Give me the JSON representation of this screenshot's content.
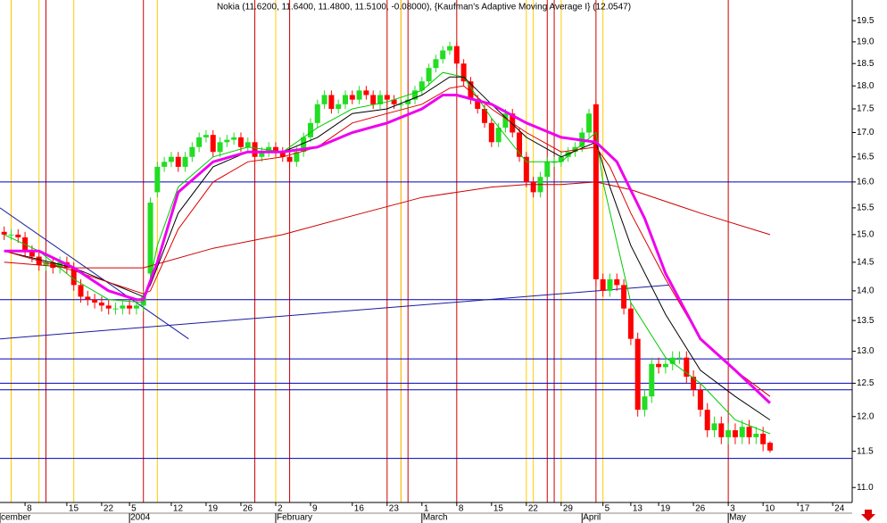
{
  "chart_data": {
    "type": "candlestick",
    "title": "Nokia (11.6200, 11.6400, 11.4800, 11.5100, -0.08000), {Kaufman's Adaptive Moving Average I} (12.0547)",
    "log_y": true,
    "xlim": [
      -0.6,
      121.8
    ],
    "ylim": [
      10.8,
      20.0
    ],
    "yticks": [
      {
        "value": 11,
        "label": "11.0"
      },
      11.5,
      {
        "value": 12,
        "label": "12.0"
      },
      12.5,
      {
        "value": 13,
        "label": "13.0"
      },
      13.5,
      {
        "value": 14,
        "label": "14.0"
      },
      14.5,
      {
        "value": 15,
        "label": "15.0"
      },
      15.5,
      {
        "value": 16,
        "label": "16.0"
      },
      16.5,
      {
        "value": 17,
        "label": "17.0"
      },
      17.5,
      {
        "value": 18,
        "label": "18.0"
      },
      18.5,
      {
        "value": 19,
        "label": "19.0"
      },
      19.5
    ],
    "xticks": [
      {
        "value": 3,
        "label": "8"
      },
      {
        "value": 9,
        "label": "15"
      },
      {
        "value": 14,
        "label": "22"
      },
      {
        "value": 18,
        "label": "5"
      },
      {
        "value": 24,
        "label": "12"
      },
      {
        "value": 29,
        "label": "19"
      },
      {
        "value": 34,
        "label": "26"
      },
      {
        "value": 39,
        "label": "2"
      },
      {
        "value": 44,
        "label": "9"
      },
      {
        "value": 50,
        "label": "16"
      },
      {
        "value": 55,
        "label": "23"
      },
      {
        "value": 60,
        "label": "1"
      },
      {
        "value": 65,
        "label": "8"
      },
      {
        "value": 70,
        "label": "15"
      },
      {
        "value": 75,
        "label": "22"
      },
      {
        "value": 80,
        "label": "29"
      },
      {
        "value": 86,
        "label": "5"
      },
      {
        "value": 90,
        "label": "13"
      },
      {
        "value": 94,
        "label": "19"
      },
      {
        "value": 99,
        "label": "26"
      },
      {
        "value": 104,
        "label": "3"
      },
      {
        "value": 109,
        "label": "10"
      },
      {
        "value": 114,
        "label": "17"
      },
      {
        "value": 119,
        "label": "24"
      }
    ],
    "month_ticks": [
      {
        "value": -0.6,
        "label": "cember"
      },
      {
        "value": 18,
        "label": "2004"
      },
      {
        "value": 39,
        "label": "February"
      },
      {
        "value": 60,
        "label": "March"
      },
      {
        "value": 83,
        "label": "April"
      },
      {
        "value": 104,
        "label": "May"
      }
    ],
    "up_color": "#22dd22",
    "down_color": "#ff0000",
    "open": [
      15.05,
      15.0,
      15.0,
      14.95,
      14.7,
      14.6,
      14.45,
      14.5,
      14.4,
      14.5,
      14.4,
      14.1,
      13.9,
      13.85,
      13.8,
      13.75,
      13.7,
      13.7,
      13.75,
      13.7,
      13.75,
      14.3,
      15.8,
      16.3,
      16.4,
      16.5,
      16.3,
      16.5,
      16.7,
      16.9,
      16.95,
      16.6,
      16.8,
      16.85,
      16.9,
      16.7,
      16.8,
      16.5,
      16.6,
      16.7,
      16.6,
      16.5,
      16.4,
      16.6,
      16.9,
      17.2,
      17.6,
      17.8,
      17.5,
      17.6,
      17.8,
      17.7,
      17.9,
      17.8,
      17.6,
      17.8,
      17.7,
      17.6,
      17.6,
      17.7,
      17.9,
      18.1,
      18.4,
      18.6,
      18.8,
      18.9,
      18.5,
      18.1,
      17.7,
      17.5,
      17.2,
      16.8,
      17.1,
      17.4,
      17.0,
      16.5,
      16.0,
      15.8,
      16.1,
      16.4,
      16.4,
      16.5,
      16.6,
      16.7,
      17.0,
      17.6,
      14.2,
      14.0,
      14.2,
      14.1,
      13.7,
      13.2,
      12.1,
      12.3,
      12.8,
      12.75,
      12.8,
      12.9,
      12.9,
      12.6,
      12.4,
      12.1,
      11.8,
      11.9,
      11.7,
      11.8,
      11.7,
      11.85,
      11.7,
      11.75,
      11.62
    ],
    "high": [
      15.15,
      15.1,
      15.1,
      15.05,
      14.8,
      14.7,
      14.6,
      14.6,
      14.6,
      14.6,
      14.5,
      14.2,
      14.0,
      13.95,
      13.9,
      13.85,
      13.8,
      13.85,
      13.85,
      13.85,
      14.0,
      15.7,
      16.4,
      16.5,
      16.6,
      16.6,
      16.6,
      16.8,
      17.0,
      17.05,
      17.05,
      16.9,
      16.95,
      17.0,
      17.0,
      16.9,
      16.9,
      16.7,
      16.8,
      16.8,
      16.7,
      16.6,
      16.7,
      17.0,
      17.3,
      17.7,
      17.9,
      17.9,
      17.7,
      17.9,
      17.9,
      18.0,
      18.0,
      17.9,
      17.9,
      17.9,
      17.8,
      17.7,
      17.8,
      18.0,
      18.2,
      18.5,
      18.7,
      18.9,
      19.0,
      19.0,
      18.6,
      18.2,
      17.8,
      17.6,
      17.3,
      17.2,
      17.5,
      17.5,
      17.1,
      16.6,
      16.1,
      16.2,
      16.5,
      16.5,
      16.6,
      16.7,
      16.8,
      17.1,
      17.5,
      17.7,
      14.3,
      14.3,
      14.3,
      14.2,
      13.8,
      13.3,
      12.4,
      12.9,
      12.9,
      12.9,
      13.0,
      13.0,
      13.0,
      12.7,
      12.5,
      12.2,
      12.0,
      12.0,
      11.9,
      11.9,
      11.95,
      11.95,
      11.85,
      11.85,
      11.64
    ],
    "low": [
      14.9,
      14.9,
      14.85,
      14.6,
      14.5,
      14.35,
      14.35,
      14.3,
      14.3,
      14.3,
      14.0,
      13.8,
      13.75,
      13.7,
      13.65,
      13.6,
      13.6,
      13.6,
      13.6,
      13.6,
      13.65,
      14.2,
      15.7,
      16.2,
      16.3,
      16.2,
      16.2,
      16.4,
      16.6,
      16.8,
      16.5,
      16.5,
      16.7,
      16.75,
      16.6,
      16.6,
      16.4,
      16.4,
      16.5,
      16.5,
      16.4,
      16.3,
      16.3,
      16.5,
      16.8,
      17.1,
      17.5,
      17.4,
      17.4,
      17.5,
      17.6,
      17.6,
      17.7,
      17.5,
      17.5,
      17.6,
      17.5,
      17.5,
      17.5,
      17.6,
      17.8,
      18.0,
      18.3,
      18.5,
      18.7,
      18.4,
      18.0,
      17.6,
      17.4,
      17.1,
      16.7,
      16.7,
      17.0,
      16.9,
      16.4,
      15.9,
      15.7,
      15.7,
      16.0,
      16.3,
      16.3,
      16.4,
      16.5,
      16.6,
      16.9,
      14.1,
      13.9,
      13.9,
      14.0,
      13.6,
      13.1,
      12.0,
      12.0,
      12.2,
      12.65,
      12.65,
      12.7,
      12.8,
      12.5,
      12.3,
      12.0,
      11.7,
      11.7,
      11.6,
      11.6,
      11.6,
      11.6,
      11.6,
      11.6,
      11.5,
      11.48
    ],
    "close": [
      15.0,
      15.0,
      14.95,
      14.7,
      14.6,
      14.45,
      14.5,
      14.4,
      14.5,
      14.4,
      14.1,
      13.9,
      13.85,
      13.8,
      13.75,
      13.7,
      13.7,
      13.75,
      13.7,
      13.75,
      13.9,
      15.6,
      16.3,
      16.4,
      16.5,
      16.3,
      16.5,
      16.7,
      16.9,
      16.95,
      16.6,
      16.8,
      16.85,
      16.9,
      16.7,
      16.8,
      16.5,
      16.6,
      16.7,
      16.6,
      16.5,
      16.4,
      16.6,
      16.9,
      17.2,
      17.6,
      17.8,
      17.5,
      17.6,
      17.8,
      17.7,
      17.9,
      17.8,
      17.6,
      17.8,
      17.7,
      17.6,
      17.6,
      17.7,
      17.9,
      18.1,
      18.4,
      18.6,
      18.8,
      18.9,
      18.5,
      18.1,
      17.7,
      17.5,
      17.2,
      16.8,
      17.1,
      17.4,
      17.0,
      16.5,
      16.0,
      15.8,
      16.1,
      16.4,
      16.4,
      16.5,
      16.6,
      16.7,
      17.0,
      17.4,
      14.2,
      14.0,
      14.2,
      14.1,
      13.7,
      13.2,
      12.1,
      12.3,
      12.8,
      12.75,
      12.8,
      12.9,
      12.9,
      12.6,
      12.4,
      12.1,
      11.8,
      11.9,
      11.7,
      11.8,
      11.7,
      11.85,
      11.7,
      11.75,
      11.6,
      11.51
    ],
    "overlays": [
      {
        "color": "#cc0000",
        "x": [
          0,
          10,
          20,
          30,
          40,
          50,
          60,
          70,
          75,
          80,
          85,
          90,
          100,
          110
        ],
        "values": [
          14.5,
          14.4,
          14.4,
          14.75,
          15.0,
          15.35,
          15.7,
          15.9,
          15.95,
          15.95,
          16.0,
          15.85,
          15.4,
          15.0
        ]
      },
      {
        "color": "#00cc00",
        "x": [
          0,
          5,
          10,
          15,
          20,
          21,
          22,
          25,
          30,
          35,
          40,
          45,
          50,
          55,
          60,
          63,
          66,
          70,
          75,
          80,
          85,
          86,
          90,
          95,
          100,
          105,
          110
        ],
        "values": [
          15.0,
          14.7,
          14.2,
          13.85,
          13.8,
          14.2,
          14.8,
          15.9,
          16.5,
          16.7,
          16.6,
          17.1,
          17.5,
          17.65,
          17.9,
          18.3,
          18.2,
          17.3,
          16.4,
          16.4,
          17.0,
          16.0,
          13.8,
          12.9,
          12.5,
          11.95,
          11.75
        ]
      },
      {
        "color": "#000000",
        "x": [
          0,
          10,
          20,
          21,
          25,
          30,
          35,
          40,
          45,
          50,
          55,
          60,
          64,
          66,
          70,
          75,
          80,
          85,
          87,
          90,
          95,
          100,
          105,
          110
        ],
        "values": [
          14.7,
          14.4,
          13.9,
          14.1,
          15.4,
          16.3,
          16.6,
          16.6,
          16.9,
          17.4,
          17.5,
          17.8,
          18.2,
          18.2,
          17.6,
          16.9,
          16.5,
          16.8,
          15.9,
          14.8,
          13.6,
          12.7,
          12.3,
          11.95
        ]
      },
      {
        "color": "#dd0000",
        "x": [
          0,
          10,
          20,
          21,
          25,
          30,
          35,
          40,
          45,
          50,
          55,
          60,
          64,
          66,
          70,
          75,
          80,
          85,
          87,
          90,
          95,
          100,
          105,
          110
        ],
        "values": [
          14.7,
          14.35,
          13.95,
          14.0,
          15.1,
          16.0,
          16.4,
          16.5,
          16.7,
          17.2,
          17.4,
          17.6,
          17.95,
          18.0,
          17.5,
          17.0,
          16.6,
          16.7,
          16.3,
          15.4,
          14.2,
          13.2,
          12.7,
          12.3
        ]
      },
      {
        "color": "#ee00ee",
        "x": [
          0,
          5,
          10,
          15,
          19,
          20,
          22,
          25,
          30,
          35,
          40,
          45,
          50,
          55,
          60,
          63,
          65,
          70,
          75,
          80,
          85,
          88,
          92,
          95,
          100,
          105,
          110
        ],
        "values": [
          14.7,
          14.7,
          14.4,
          14.0,
          13.85,
          13.85,
          14.5,
          15.8,
          16.4,
          16.6,
          16.6,
          16.7,
          17.0,
          17.2,
          17.5,
          17.8,
          17.8,
          17.6,
          17.2,
          16.9,
          16.8,
          16.4,
          15.3,
          14.3,
          13.2,
          12.7,
          12.2
        ],
        "thick": true
      }
    ],
    "hlines": {
      "color": "#0000bb",
      "values": [
        16.0,
        13.85,
        12.88,
        12.5,
        12.4,
        11.4
      ]
    },
    "trendlines": {
      "color": "#1a1aa0",
      "lines": [
        {
          "x": [
            -0.6,
            26.5
          ],
          "values": [
            15.5,
            13.2
          ]
        },
        {
          "x": [
            -0.6,
            95.5
          ],
          "values": [
            13.2,
            14.1
          ]
        }
      ]
    },
    "vlines": [
      {
        "color": "#cc0000",
        "x": [
          1,
          6,
          20,
          36,
          41,
          55,
          57,
          58,
          65,
          78,
          79,
          85,
          104
        ]
      },
      {
        "color": "#ffcc00",
        "x": [
          1,
          5,
          10,
          22,
          39,
          57,
          75,
          76,
          80,
          86
        ]
      }
    ]
  }
}
